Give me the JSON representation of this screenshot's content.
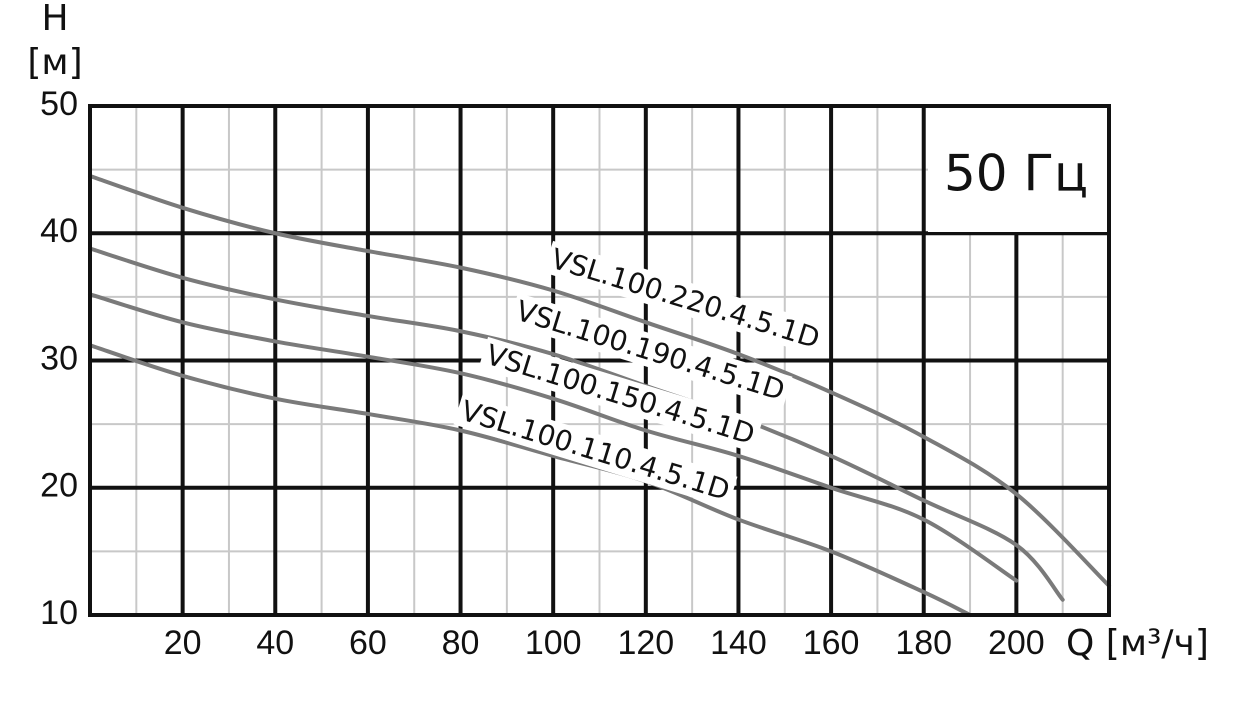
{
  "chart_data": {
    "type": "line",
    "y_label_top": "H",
    "y_label_unit": "[м]",
    "x_label": "Q [м³/ч]",
    "annotation": "50 Гц",
    "xlim": [
      0,
      220
    ],
    "ylim": [
      10,
      50
    ],
    "xticks": [
      20,
      40,
      60,
      80,
      100,
      120,
      140,
      160,
      180,
      200
    ],
    "yticks": [
      10,
      20,
      30,
      40,
      50
    ],
    "grid": true,
    "minor_grid": true,
    "series": [
      {
        "name": "VSL.100.220.4.5.1D",
        "color": "#7a7a7a",
        "x": [
          0,
          20,
          40,
          60,
          80,
          100,
          120,
          140,
          160,
          180,
          200,
          220
        ],
        "values": [
          44.5,
          42,
          40,
          38.6,
          37.3,
          35.5,
          33,
          30.5,
          27.5,
          24,
          19.5,
          12.3
        ]
      },
      {
        "name": "VSL.100.190.4.5.1D",
        "color": "#7a7a7a",
        "x": [
          0,
          20,
          40,
          60,
          80,
          100,
          120,
          140,
          160,
          180,
          200,
          210
        ],
        "values": [
          38.8,
          36.5,
          34.8,
          33.5,
          32.3,
          30.5,
          28,
          25.5,
          22.5,
          19,
          15.5,
          11.2
        ]
      },
      {
        "name": "VSL.100.150.4.5.1D",
        "color": "#7a7a7a",
        "x": [
          0,
          20,
          40,
          60,
          80,
          100,
          120,
          140,
          160,
          180,
          200
        ],
        "values": [
          35.2,
          33,
          31.5,
          30.3,
          29,
          27,
          24.5,
          22.5,
          20,
          17.5,
          12.7
        ]
      },
      {
        "name": "VSL.100.110.4.5.1D",
        "color": "#7a7a7a",
        "x": [
          0,
          20,
          40,
          60,
          80,
          100,
          120,
          140,
          160,
          180,
          190
        ],
        "values": [
          31.2,
          28.8,
          27,
          25.8,
          24.5,
          22.5,
          20.5,
          17.5,
          15,
          11.8,
          10
        ]
      }
    ]
  }
}
